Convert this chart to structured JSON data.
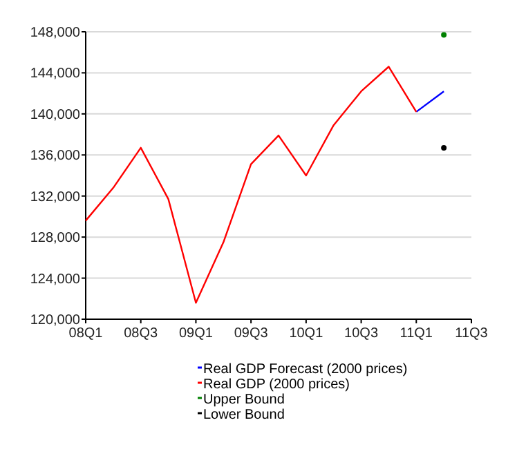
{
  "chart_data": {
    "type": "line",
    "categories": [
      "08Q1",
      null,
      "08Q3",
      null,
      "09Q1",
      null,
      "09Q3",
      null,
      "10Q1",
      null,
      "10Q3",
      null,
      "11Q1",
      null,
      "11Q3"
    ],
    "ylim": [
      120000,
      148000
    ],
    "yticks": [
      {
        "value": 120000,
        "label": "120,000"
      },
      {
        "value": 124000,
        "label": "124,000"
      },
      {
        "value": 128000,
        "label": "128,000"
      },
      {
        "value": 132000,
        "label": "132,000"
      },
      {
        "value": 136000,
        "label": "136,000"
      },
      {
        "value": 140000,
        "label": "140,000"
      },
      {
        "value": 144000,
        "label": "144,000"
      },
      {
        "value": 148000,
        "label": "148,000"
      }
    ],
    "grid": "y",
    "legend": "bottom",
    "series": [
      {
        "name": "Real GDP Forecast (2000 prices)",
        "color": "#0000ff",
        "values": [
          null,
          null,
          null,
          null,
          null,
          null,
          null,
          null,
          null,
          null,
          null,
          null,
          140200,
          142200,
          null
        ]
      },
      {
        "name": "Real GDP (2000 prices)",
        "color": "#ff0000",
        "values": [
          129600,
          132800,
          136700,
          131700,
          121600,
          127500,
          135100,
          137900,
          134000,
          138900,
          142200,
          144600,
          140200,
          null,
          null
        ]
      },
      {
        "name": "Upper Bound",
        "type": "scatter",
        "marker": "circle",
        "color": "#008000",
        "values": [
          null,
          null,
          null,
          null,
          null,
          null,
          null,
          null,
          null,
          null,
          null,
          null,
          null,
          147700,
          null
        ]
      },
      {
        "name": "Lower Bound",
        "type": "scatter",
        "marker": "circle",
        "color": "#000000",
        "values": [
          null,
          null,
          null,
          null,
          null,
          null,
          null,
          null,
          null,
          null,
          null,
          null,
          null,
          136700,
          null
        ]
      }
    ]
  }
}
